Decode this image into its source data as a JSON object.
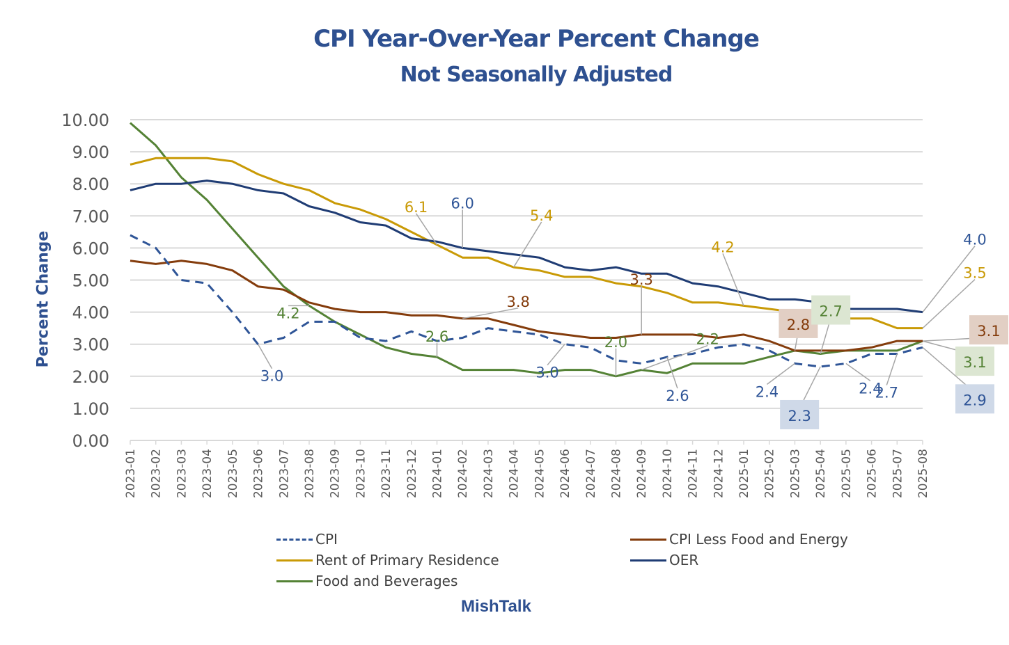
{
  "chart_data": {
    "type": "line",
    "title": "CPI Year-Over-Year Percent Change",
    "subtitle": "Not Seasonally Adjusted",
    "xlabel": "",
    "ylabel": "Percent Change",
    "ylim": [
      0,
      10
    ],
    "yticks": [
      "0.00",
      "1.00",
      "2.00",
      "3.00",
      "4.00",
      "5.00",
      "6.00",
      "7.00",
      "8.00",
      "9.00",
      "10.00"
    ],
    "grid": true,
    "legend_position": "bottom",
    "credit": "MishTalk",
    "x": [
      "2023-01",
      "2023-02",
      "2023-03",
      "2023-04",
      "2023-05",
      "2023-06",
      "2023-07",
      "2023-08",
      "2023-09",
      "2023-10",
      "2023-11",
      "2023-12",
      "2024-01",
      "2024-02",
      "2024-03",
      "2024-04",
      "2024-05",
      "2024-06",
      "2024-07",
      "2024-08",
      "2024-09",
      "2024-10",
      "2024-11",
      "2024-12",
      "2025-01",
      "2025-02",
      "2025-03",
      "2025-04",
      "2025-05",
      "2025-06",
      "2025-07",
      "2025-08"
    ],
    "series": [
      {
        "name": "CPI",
        "color": "#2f5597",
        "dashed": true,
        "values": [
          6.4,
          6.0,
          5.0,
          4.9,
          4.0,
          3.0,
          3.2,
          3.7,
          3.7,
          3.2,
          3.1,
          3.4,
          3.1,
          3.2,
          3.5,
          3.4,
          3.3,
          3.0,
          2.9,
          2.5,
          2.4,
          2.6,
          2.7,
          2.9,
          3.0,
          2.8,
          2.4,
          2.3,
          2.4,
          2.7,
          2.7,
          2.9
        ]
      },
      {
        "name": "CPI Less Food and Energy",
        "color": "#843c0c",
        "dashed": false,
        "values": [
          5.6,
          5.5,
          5.6,
          5.5,
          5.3,
          4.8,
          4.7,
          4.3,
          4.1,
          4.0,
          4.0,
          3.9,
          3.9,
          3.8,
          3.8,
          3.6,
          3.4,
          3.3,
          3.2,
          3.2,
          3.3,
          3.3,
          3.3,
          3.2,
          3.3,
          3.1,
          2.8,
          2.8,
          2.8,
          2.9,
          3.1,
          3.1
        ]
      },
      {
        "name": "Rent of Primary Residence",
        "color": "#c99a06",
        "dashed": false,
        "values": [
          8.6,
          8.8,
          8.8,
          8.8,
          8.7,
          8.3,
          8.0,
          7.8,
          7.4,
          7.2,
          6.9,
          6.5,
          6.1,
          5.7,
          5.7,
          5.4,
          5.3,
          5.1,
          5.1,
          4.9,
          4.8,
          4.6,
          4.3,
          4.3,
          4.2,
          4.1,
          4.0,
          4.0,
          3.8,
          3.8,
          3.5,
          3.5
        ]
      },
      {
        "name": "OER",
        "color": "#1f3c74",
        "dashed": false,
        "values": [
          7.8,
          8.0,
          8.0,
          8.1,
          8.0,
          7.8,
          7.7,
          7.3,
          7.1,
          6.8,
          6.7,
          6.3,
          6.2,
          6.0,
          5.9,
          5.8,
          5.7,
          5.4,
          5.3,
          5.4,
          5.2,
          5.2,
          4.9,
          4.8,
          4.6,
          4.4,
          4.4,
          4.3,
          4.1,
          4.1,
          4.1,
          4.0
        ]
      },
      {
        "name": "Food and Beverages",
        "color": "#548235",
        "dashed": false,
        "values": [
          9.9,
          9.2,
          8.2,
          7.5,
          6.6,
          5.7,
          4.8,
          4.2,
          3.7,
          3.3,
          2.9,
          2.7,
          2.6,
          2.2,
          2.2,
          2.2,
          2.1,
          2.2,
          2.2,
          2.0,
          2.2,
          2.1,
          2.4,
          2.4,
          2.4,
          2.6,
          2.8,
          2.7,
          2.8,
          2.8,
          2.8,
          3.1
        ]
      }
    ],
    "annotations": [
      {
        "text": "6.1",
        "series": 2,
        "x": "2024-01",
        "color": "#c99a06"
      },
      {
        "text": "6.0",
        "series": 3,
        "x": "2024-02",
        "color": "#2f5597"
      },
      {
        "text": "5.4",
        "series": 2,
        "x": "2024-04",
        "color": "#c99a06"
      },
      {
        "text": "4.2",
        "series": 4,
        "x": "2023-08",
        "color": "#548235"
      },
      {
        "text": "3.0",
        "series": 0,
        "x": "2023-06",
        "color": "#2f5597"
      },
      {
        "text": "2.6",
        "series": 4,
        "x": "2024-01",
        "color": "#548235"
      },
      {
        "text": "3.8",
        "series": 1,
        "x": "2024-02",
        "color": "#843c0c"
      },
      {
        "text": "3.0",
        "series": 0,
        "x": "2024-06",
        "color": "#2f5597"
      },
      {
        "text": "3.3",
        "series": 1,
        "x": "2024-09",
        "color": "#843c0c"
      },
      {
        "text": "2.0",
        "series": 4,
        "x": "2024-08",
        "color": "#548235"
      },
      {
        "text": "2.6",
        "series": 0,
        "x": "2024-10",
        "color": "#2f5597"
      },
      {
        "text": "2.2",
        "series": 4,
        "x": "2024-09",
        "color": "#548235"
      },
      {
        "text": "4.2",
        "series": 2,
        "x": "2025-01",
        "color": "#c99a06"
      },
      {
        "text": "2.8",
        "series": 1,
        "x": "2025-03",
        "color": "#843c0c",
        "box": "#e2cfc4"
      },
      {
        "text": "2.7",
        "series": 4,
        "x": "2025-04",
        "color": "#548235",
        "box": "#dce6d2"
      },
      {
        "text": "2.4",
        "series": 0,
        "x": "2025-03",
        "color": "#2f5597"
      },
      {
        "text": "2.3",
        "series": 0,
        "x": "2025-04",
        "color": "#2f5597",
        "box": "#cfd9e8"
      },
      {
        "text": "2.4",
        "series": 0,
        "x": "2025-05",
        "color": "#2f5597"
      },
      {
        "text": "2.7",
        "series": 0,
        "x": "2025-07",
        "color": "#2f5597"
      },
      {
        "text": "4.0",
        "series": 3,
        "x": "2025-08",
        "color": "#2f5597"
      },
      {
        "text": "3.5",
        "series": 2,
        "x": "2025-08",
        "color": "#c99a06"
      },
      {
        "text": "3.1",
        "series": 1,
        "x": "2025-08",
        "color": "#843c0c",
        "box": "#e2cfc4"
      },
      {
        "text": "3.1",
        "series": 4,
        "x": "2025-08",
        "color": "#548235",
        "box": "#dce6d2"
      },
      {
        "text": "2.9",
        "series": 0,
        "x": "2025-08",
        "color": "#2f5597",
        "box": "#cfd9e8"
      }
    ]
  }
}
